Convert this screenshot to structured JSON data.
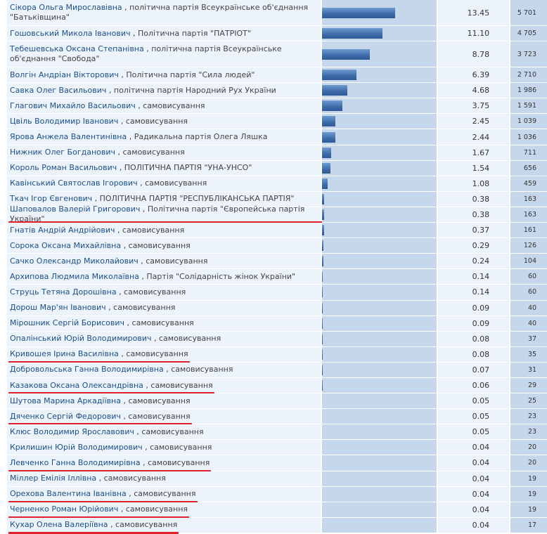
{
  "rows": [
    {
      "name": "Сікора Ольга Мирославівна",
      "party": ", політична партія Всеукраїнське об'єднання \"Батьківщина\"",
      "pct": "13.45",
      "votes": "5 701",
      "share": 13.45
    },
    {
      "name": "Гошовський Микола Іванович",
      "party": ", Політична партія \"ПАТРІОТ\"",
      "pct": "11.10",
      "votes": "4 705",
      "share": 11.1
    },
    {
      "name": "Тебешевська Оксана Степанівна",
      "party": ", політична партія Всеукраїнське об'єднання \"Свобода\"",
      "pct": "8.78",
      "votes": "3 723",
      "share": 8.78
    },
    {
      "name": "Волгін Андріан Вікторович",
      "party": ", Політична партія \"Сила людей\"",
      "pct": "6.39",
      "votes": "2 710",
      "share": 6.39
    },
    {
      "name": "Савка Олег Васильович",
      "party": ", політична партія Народний Рух України",
      "pct": "4.68",
      "votes": "1 986",
      "share": 4.68
    },
    {
      "name": "Глагович Михайло Васильович",
      "party": ", самовисування",
      "pct": "3.75",
      "votes": "1 591",
      "share": 3.75
    },
    {
      "name": "Цвіль Володимир Іванович",
      "party": ", самовисування",
      "pct": "2.45",
      "votes": "1 039",
      "share": 2.45
    },
    {
      "name": "Ярова Анжела Валентинівна",
      "party": ", Радикальна партія Олега Ляшка",
      "pct": "2.44",
      "votes": "1 036",
      "share": 2.44
    },
    {
      "name": "Нижник Олег Богданович",
      "party": ", самовисування",
      "pct": "1.67",
      "votes": "711",
      "share": 1.67
    },
    {
      "name": "Король Роман Васильович",
      "party": ", ПОЛІТИЧНА ПАРТІЯ \"УНА-УНСО\"",
      "pct": "1.54",
      "votes": "656",
      "share": 1.54
    },
    {
      "name": "Кавінський Святослав Ігорович",
      "party": ", самовисування",
      "pct": "1.08",
      "votes": "459",
      "share": 1.08
    },
    {
      "name": "Ткач Ігор Євгенович",
      "party": ", ПОЛІТИЧНА ПАРТІЯ \"РЕСПУБЛІКАНСЬКА ПАРТІЯ\"",
      "pct": "0.38",
      "votes": "163",
      "share": 0.38
    },
    {
      "name": "Шаповалов Валерій Григорович",
      "party": ", Політична партія \"Європейська партія України\"",
      "pct": "0.38",
      "votes": "163",
      "share": 0.38,
      "underlined": true
    },
    {
      "name": "Гнатів Андрій Андрійович",
      "party": ", самовисування",
      "pct": "0.37",
      "votes": "161",
      "share": 0.37
    },
    {
      "name": "Сорока Оксана Михайлівна",
      "party": ", самовисування",
      "pct": "0.29",
      "votes": "126",
      "share": 0.29
    },
    {
      "name": "Сачко Олександр Миколайович",
      "party": ", самовисування",
      "pct": "0.24",
      "votes": "104",
      "share": 0.24
    },
    {
      "name": "Архипова Людмила Миколаївна",
      "party": ", Партія \"Солідарність жінок України\"",
      "pct": "0.14",
      "votes": "60",
      "share": 0.14
    },
    {
      "name": "Струць Тетяна Дорошівна",
      "party": ", самовисування",
      "pct": "0.14",
      "votes": "60",
      "share": 0.14
    },
    {
      "name": "Дорош Мар'ян Іванович",
      "party": ", самовисування",
      "pct": "0.09",
      "votes": "40",
      "share": 0.09
    },
    {
      "name": "Мірошник Сергій Борисович",
      "party": ", самовисування",
      "pct": "0.09",
      "votes": "40",
      "share": 0.09
    },
    {
      "name": "Опалінський Юрій Володимирович",
      "party": ", самовисування",
      "pct": "0.08",
      "votes": "37",
      "share": 0.08
    },
    {
      "name": "Кривошея Ірина Василівна",
      "party": ", самовисування",
      "pct": "0.08",
      "votes": "35",
      "share": 0.08,
      "underlined": true
    },
    {
      "name": "Добровольська Ганна Володимирівна",
      "party": ", самовисування",
      "pct": "0.07",
      "votes": "31",
      "share": 0.07
    },
    {
      "name": "Казакова Оксана Олександрівна",
      "party": ", самовисування",
      "pct": "0.06",
      "votes": "29",
      "share": 0.06,
      "underlined": true
    },
    {
      "name": "Шутова Марина Аркадіївна",
      "party": ", самовисування",
      "pct": "0.05",
      "votes": "25",
      "share": 0.05
    },
    {
      "name": "Дяченко Сергій Федорович",
      "party": ", самовисування",
      "pct": "0.05",
      "votes": "23",
      "share": 0.05,
      "underlined": true
    },
    {
      "name": "Клюс Володимир Ярославович",
      "party": ", самовисування",
      "pct": "0.05",
      "votes": "23",
      "share": 0.05
    },
    {
      "name": "Крилишин Юрій Володимирович",
      "party": ", самовисування",
      "pct": "0.04",
      "votes": "20",
      "share": 0.04
    },
    {
      "name": "Левченко Ганна Володимирівна",
      "party": ", самовисування",
      "pct": "0.04",
      "votes": "20",
      "share": 0.04,
      "underlined": true
    },
    {
      "name": "Міллер Емілія Іллівна",
      "party": ", самовисування",
      "pct": "0.04",
      "votes": "19",
      "share": 0.04
    },
    {
      "name": "Орехова Валентина Іванівна",
      "party": ", самовисування",
      "pct": "0.04",
      "votes": "19",
      "share": 0.04,
      "underlined": true
    },
    {
      "name": "Черненко Роман Юрійович",
      "party": ", самовисування",
      "pct": "0.04",
      "votes": "19",
      "share": 0.04,
      "underlined": true
    },
    {
      "name": "Кухар Олена Валеріївна",
      "party": ", самовисування",
      "pct": "0.04",
      "votes": "17",
      "share": 0.04,
      "underlined": true
    }
  ],
  "chart_data": {
    "type": "bar",
    "orientation": "horizontal",
    "categories": [
      "Сікора Ольга Мирославівна",
      "Гошовський Микола Іванович",
      "Тебешевська Оксана Степанівна",
      "Волгін Андріан Вікторович",
      "Савка Олег Васильович",
      "Глагович Михайло Васильович",
      "Цвіль Володимир Іванович",
      "Ярова Анжела Валентинівна",
      "Нижник Олег Богданович",
      "Король Роман Васильович",
      "Кавінський Святослав Ігорович",
      "Ткач Ігор Євгенович",
      "Шаповалов Валерій Григорович",
      "Гнатів Андрій Андрійович",
      "Сорока Оксана Михайлівна",
      "Сачко Олександр Миколайович",
      "Архипова Людмила Миколаївна",
      "Струць Тетяна Дорошівна",
      "Дорош Мар'ян Іванович",
      "Мірошник Сергій Борисович",
      "Опалінський Юрій Володимирович",
      "Кривошея Ірина Василівна",
      "Добровольська Ганна Володимирівна",
      "Казакова Оксана Олександрівна",
      "Шутова Марина Аркадіївна",
      "Дяченко Сергій Федорович",
      "Клюс Володимир Ярославович",
      "Крилишин Юрій Володимирович",
      "Левченко Ганна Володимирівна",
      "Міллер Емілія Іллівна",
      "Орехова Валентина Іванівна",
      "Черненко Роман Юрійович",
      "Кухар Олена Валеріївна"
    ],
    "values": [
      13.45,
      11.1,
      8.78,
      6.39,
      4.68,
      3.75,
      2.45,
      2.44,
      1.67,
      1.54,
      1.08,
      0.38,
      0.38,
      0.37,
      0.29,
      0.24,
      0.14,
      0.14,
      0.09,
      0.09,
      0.08,
      0.08,
      0.07,
      0.06,
      0.05,
      0.05,
      0.05,
      0.04,
      0.04,
      0.04,
      0.04,
      0.04,
      0.04
    ],
    "votes": [
      5701,
      4705,
      3723,
      2710,
      1986,
      1591,
      1039,
      1036,
      711,
      656,
      459,
      163,
      163,
      161,
      126,
      104,
      60,
      60,
      40,
      40,
      37,
      35,
      31,
      29,
      25,
      23,
      23,
      20,
      20,
      19,
      19,
      19,
      17
    ],
    "title": "",
    "xlabel": "",
    "ylabel": ""
  },
  "colors": {
    "bar": "#3d6aa8",
    "underline": "#e0202a",
    "name": "#1a4f8a"
  }
}
